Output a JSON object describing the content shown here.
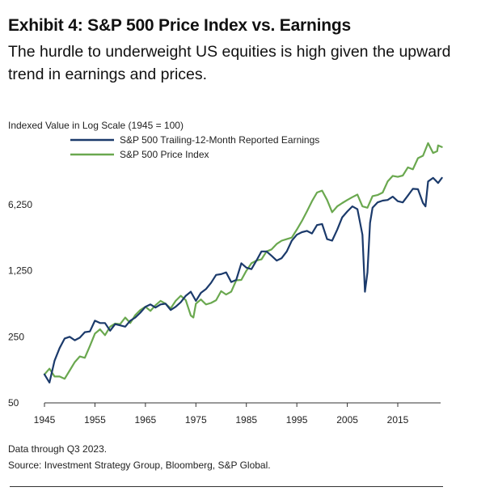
{
  "header": {
    "title": "Exhibit 4: S&P 500 Price Index vs. Earnings",
    "subtitle": "The hurdle to underweight US equities is high given the upward trend in earnings and prices."
  },
  "footer": {
    "note": "Data through Q3 2023.",
    "source": "Source: Investment Strategy Group, Bloomberg, S&P Global."
  },
  "colors": {
    "earnings": "#1b3a6b",
    "price": "#6aa84f",
    "axis": "#333333"
  },
  "chart_data": {
    "type": "line",
    "ylabel": "Indexed Value in Log Scale (1945 = 100)",
    "yscale": "log",
    "ylim": [
      50,
      30000
    ],
    "xlim": [
      1945,
      2023.75
    ],
    "yticks": [
      50,
      250,
      1250,
      6250
    ],
    "ytick_labels": [
      "50",
      "250",
      "1,250",
      "6,250"
    ],
    "xticks": [
      1945,
      1955,
      1965,
      1975,
      1985,
      1995,
      2005,
      2015
    ],
    "xtick_labels": [
      "1945",
      "1955",
      "1965",
      "1975",
      "1985",
      "1995",
      "2005",
      "2015"
    ],
    "grid": false,
    "legend_position": "top-left",
    "series": [
      {
        "name": "S&P 500 Trailing-12-Month Reported Earnings",
        "color": "#1b3a6b",
        "x": [
          1945,
          1946,
          1947,
          1948,
          1949,
          1950,
          1951,
          1952,
          1953,
          1954,
          1955,
          1956,
          1957,
          1958,
          1959,
          1960,
          1961,
          1962,
          1963,
          1964,
          1965,
          1966,
          1967,
          1968,
          1969,
          1970,
          1971,
          1972,
          1973,
          1974,
          1975,
          1976,
          1977,
          1978,
          1979,
          1980,
          1981,
          1982,
          1983,
          1984,
          1985,
          1986,
          1987,
          1988,
          1989,
          1990,
          1991,
          1992,
          1993,
          1994,
          1995,
          1996,
          1997,
          1998,
          1999,
          2000,
          2001,
          2002,
          2003,
          2004,
          2005,
          2006,
          2007,
          2008,
          2008.5,
          2009,
          2009.5,
          2010,
          2011,
          2012,
          2013,
          2014,
          2015,
          2016,
          2017,
          2018,
          2019,
          2020,
          2020.5,
          2021,
          2022,
          2023,
          2023.75
        ],
        "values": [
          100,
          82,
          140,
          190,
          240,
          250,
          230,
          245,
          280,
          285,
          370,
          350,
          350,
          290,
          340,
          330,
          320,
          370,
          400,
          450,
          520,
          550,
          510,
          550,
          560,
          480,
          520,
          580,
          680,
          750,
          600,
          730,
          800,
          930,
          1130,
          1150,
          1200,
          950,
          1000,
          1500,
          1350,
          1300,
          1600,
          2000,
          2000,
          1800,
          1600,
          1700,
          2000,
          2600,
          3000,
          3200,
          3300,
          3100,
          3800,
          3900,
          2700,
          2600,
          3400,
          4600,
          5300,
          6000,
          5600,
          3000,
          750,
          1200,
          4000,
          5800,
          6600,
          6900,
          7000,
          7600,
          6800,
          6600,
          7800,
          9200,
          9100,
          6500,
          6000,
          11000,
          12000,
          10600,
          12000
        ]
      },
      {
        "name": "S&P 500 Price Index",
        "color": "#6aa84f",
        "x": [
          1945,
          1946,
          1947,
          1948,
          1949,
          1950,
          1951,
          1952,
          1953,
          1954,
          1955,
          1956,
          1957,
          1958,
          1959,
          1960,
          1961,
          1962,
          1963,
          1964,
          1965,
          1966,
          1967,
          1968,
          1969,
          1970,
          1971,
          1972,
          1973,
          1974,
          1974.5,
          1975,
          1976,
          1977,
          1978,
          1979,
          1980,
          1981,
          1982,
          1983,
          1984,
          1985,
          1986,
          1987,
          1988,
          1989,
          1990,
          1991,
          1992,
          1993,
          1994,
          1995,
          1996,
          1997,
          1998,
          1999,
          2000,
          2001,
          2002,
          2003,
          2004,
          2005,
          2006,
          2007,
          2008,
          2009,
          2010,
          2011,
          2012,
          2013,
          2014,
          2015,
          2016,
          2017,
          2018,
          2019,
          2020,
          2021,
          2022,
          2022.8,
          2023,
          2023.75
        ],
        "values": [
          100,
          115,
          95,
          95,
          90,
          110,
          135,
          155,
          150,
          200,
          270,
          300,
          260,
          320,
          345,
          340,
          400,
          350,
          425,
          480,
          520,
          470,
          540,
          600,
          560,
          500,
          600,
          680,
          610,
          420,
          400,
          560,
          620,
          550,
          570,
          610,
          760,
          700,
          750,
          990,
          1000,
          1250,
          1500,
          1600,
          1650,
          2000,
          2100,
          2400,
          2600,
          2700,
          2800,
          3400,
          4200,
          5300,
          6800,
          8400,
          8800,
          7000,
          5200,
          6000,
          6500,
          7000,
          7500,
          8000,
          6000,
          5800,
          7700,
          7900,
          8400,
          11000,
          12600,
          12300,
          12700,
          15500,
          14800,
          19400,
          20600,
          28000,
          22000,
          23000,
          26500,
          25500
        ]
      }
    ]
  }
}
